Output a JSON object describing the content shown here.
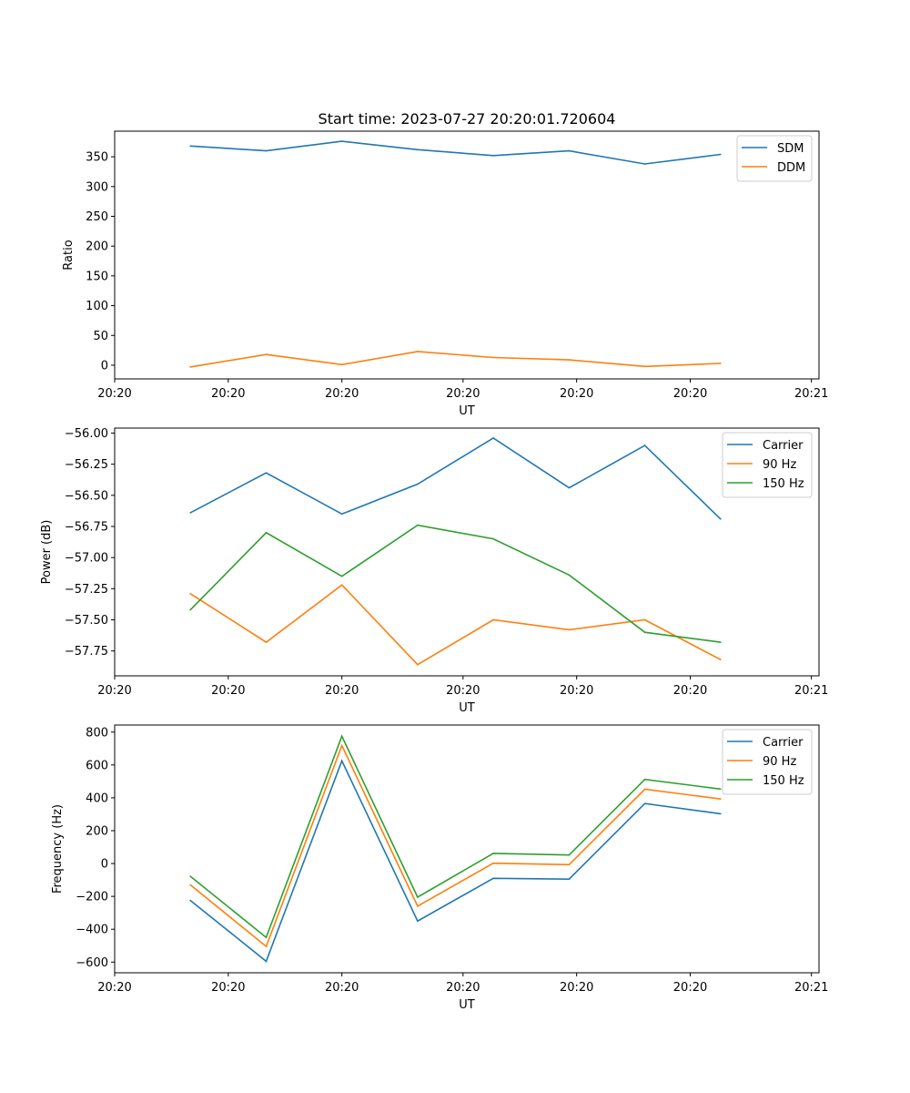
{
  "figure": {
    "title": "Start time: 2023-07-27 20:20:01.720604"
  },
  "chart_data": [
    {
      "type": "line",
      "name": "ratio",
      "title": "Start time: 2023-07-27 20:20:01.720604",
      "xlabel": "UT",
      "ylabel": "Ratio",
      "x": [
        1.0,
        2.0,
        3.0,
        4.0,
        5.0,
        6.0,
        7.0,
        8.0
      ],
      "xlim": [
        0.0,
        9.3
      ],
      "xticks": [
        0.0,
        1.5,
        3.0,
        4.6,
        6.1,
        7.6,
        9.2
      ],
      "xtick_labels": [
        "20:20",
        "20:20",
        "20:20",
        "20:20",
        "20:20",
        "20:20",
        "20:21"
      ],
      "ylim": [
        -23,
        393
      ],
      "yticks": [
        0,
        50,
        100,
        150,
        200,
        250,
        300,
        350
      ],
      "ytick_labels": [
        "0",
        "50",
        "100",
        "150",
        "200",
        "250",
        "300",
        "350"
      ],
      "legend_position": "top-right",
      "grid": false,
      "series": [
        {
          "name": "SDM",
          "color": "#1f77b4",
          "values": [
            368,
            360,
            376,
            362,
            352,
            360,
            338,
            354
          ]
        },
        {
          "name": "DDM",
          "color": "#ff7f0e",
          "values": [
            -3,
            18,
            1,
            23,
            13,
            9,
            -2,
            3
          ]
        }
      ]
    },
    {
      "type": "line",
      "name": "power",
      "title": "",
      "xlabel": "UT",
      "ylabel": "Power (dB)",
      "x": [
        1.0,
        2.0,
        3.0,
        4.0,
        5.0,
        6.0,
        7.0,
        8.0
      ],
      "xlim": [
        0.0,
        9.3
      ],
      "xticks": [
        0.0,
        1.5,
        3.0,
        4.6,
        6.1,
        7.6,
        9.2
      ],
      "xtick_labels": [
        "20:20",
        "20:20",
        "20:20",
        "20:20",
        "20:20",
        "20:20",
        "20:21"
      ],
      "ylim": [
        -57.95,
        -55.96
      ],
      "yticks": [
        -57.75,
        -57.5,
        -57.25,
        -57.0,
        -56.75,
        -56.5,
        -56.25,
        -56.0
      ],
      "ytick_labels": [
        "−57.75",
        "−57.50",
        "−57.25",
        "−57.00",
        "−56.75",
        "−56.50",
        "−56.25",
        "−56.00"
      ],
      "legend_position": "top-right",
      "grid": false,
      "series": [
        {
          "name": "Carrier",
          "color": "#1f77b4",
          "values": [
            -56.64,
            -56.32,
            -56.65,
            -56.41,
            -56.04,
            -56.44,
            -56.1,
            -56.69
          ]
        },
        {
          "name": "90 Hz",
          "color": "#ff7f0e",
          "values": [
            -57.29,
            -57.68,
            -57.22,
            -57.86,
            -57.5,
            -57.58,
            -57.5,
            -57.82
          ]
        },
        {
          "name": "150 Hz",
          "color": "#2ca02c",
          "values": [
            -57.42,
            -56.8,
            -57.15,
            -56.74,
            -56.85,
            -57.14,
            -57.6,
            -57.68
          ]
        }
      ]
    },
    {
      "type": "line",
      "name": "frequency",
      "title": "",
      "xlabel": "UT",
      "ylabel": "Frequency (Hz)",
      "x": [
        1.0,
        2.0,
        3.0,
        4.0,
        5.0,
        6.0,
        7.0,
        8.0
      ],
      "xlim": [
        0.0,
        9.3
      ],
      "xticks": [
        0.0,
        1.5,
        3.0,
        4.6,
        6.1,
        7.6,
        9.2
      ],
      "xtick_labels": [
        "20:20",
        "20:20",
        "20:20",
        "20:20",
        "20:20",
        "20:20",
        "20:21"
      ],
      "ylim": [
        -665,
        843
      ],
      "yticks": [
        -600,
        -400,
        -200,
        0,
        200,
        400,
        600,
        800
      ],
      "ytick_labels": [
        "−600",
        "−400",
        "−200",
        "0",
        "200",
        "400",
        "600",
        "800"
      ],
      "legend_position": "top-right",
      "grid": false,
      "series": [
        {
          "name": "Carrier",
          "color": "#1f77b4",
          "values": [
            -225,
            -595,
            625,
            -350,
            -90,
            -95,
            365,
            303
          ]
        },
        {
          "name": "90 Hz",
          "color": "#ff7f0e",
          "values": [
            -130,
            -505,
            718,
            -260,
            2,
            -7,
            452,
            393
          ]
        },
        {
          "name": "150 Hz",
          "color": "#2ca02c",
          "values": [
            -78,
            -450,
            775,
            -205,
            62,
            52,
            512,
            453
          ]
        }
      ]
    }
  ]
}
